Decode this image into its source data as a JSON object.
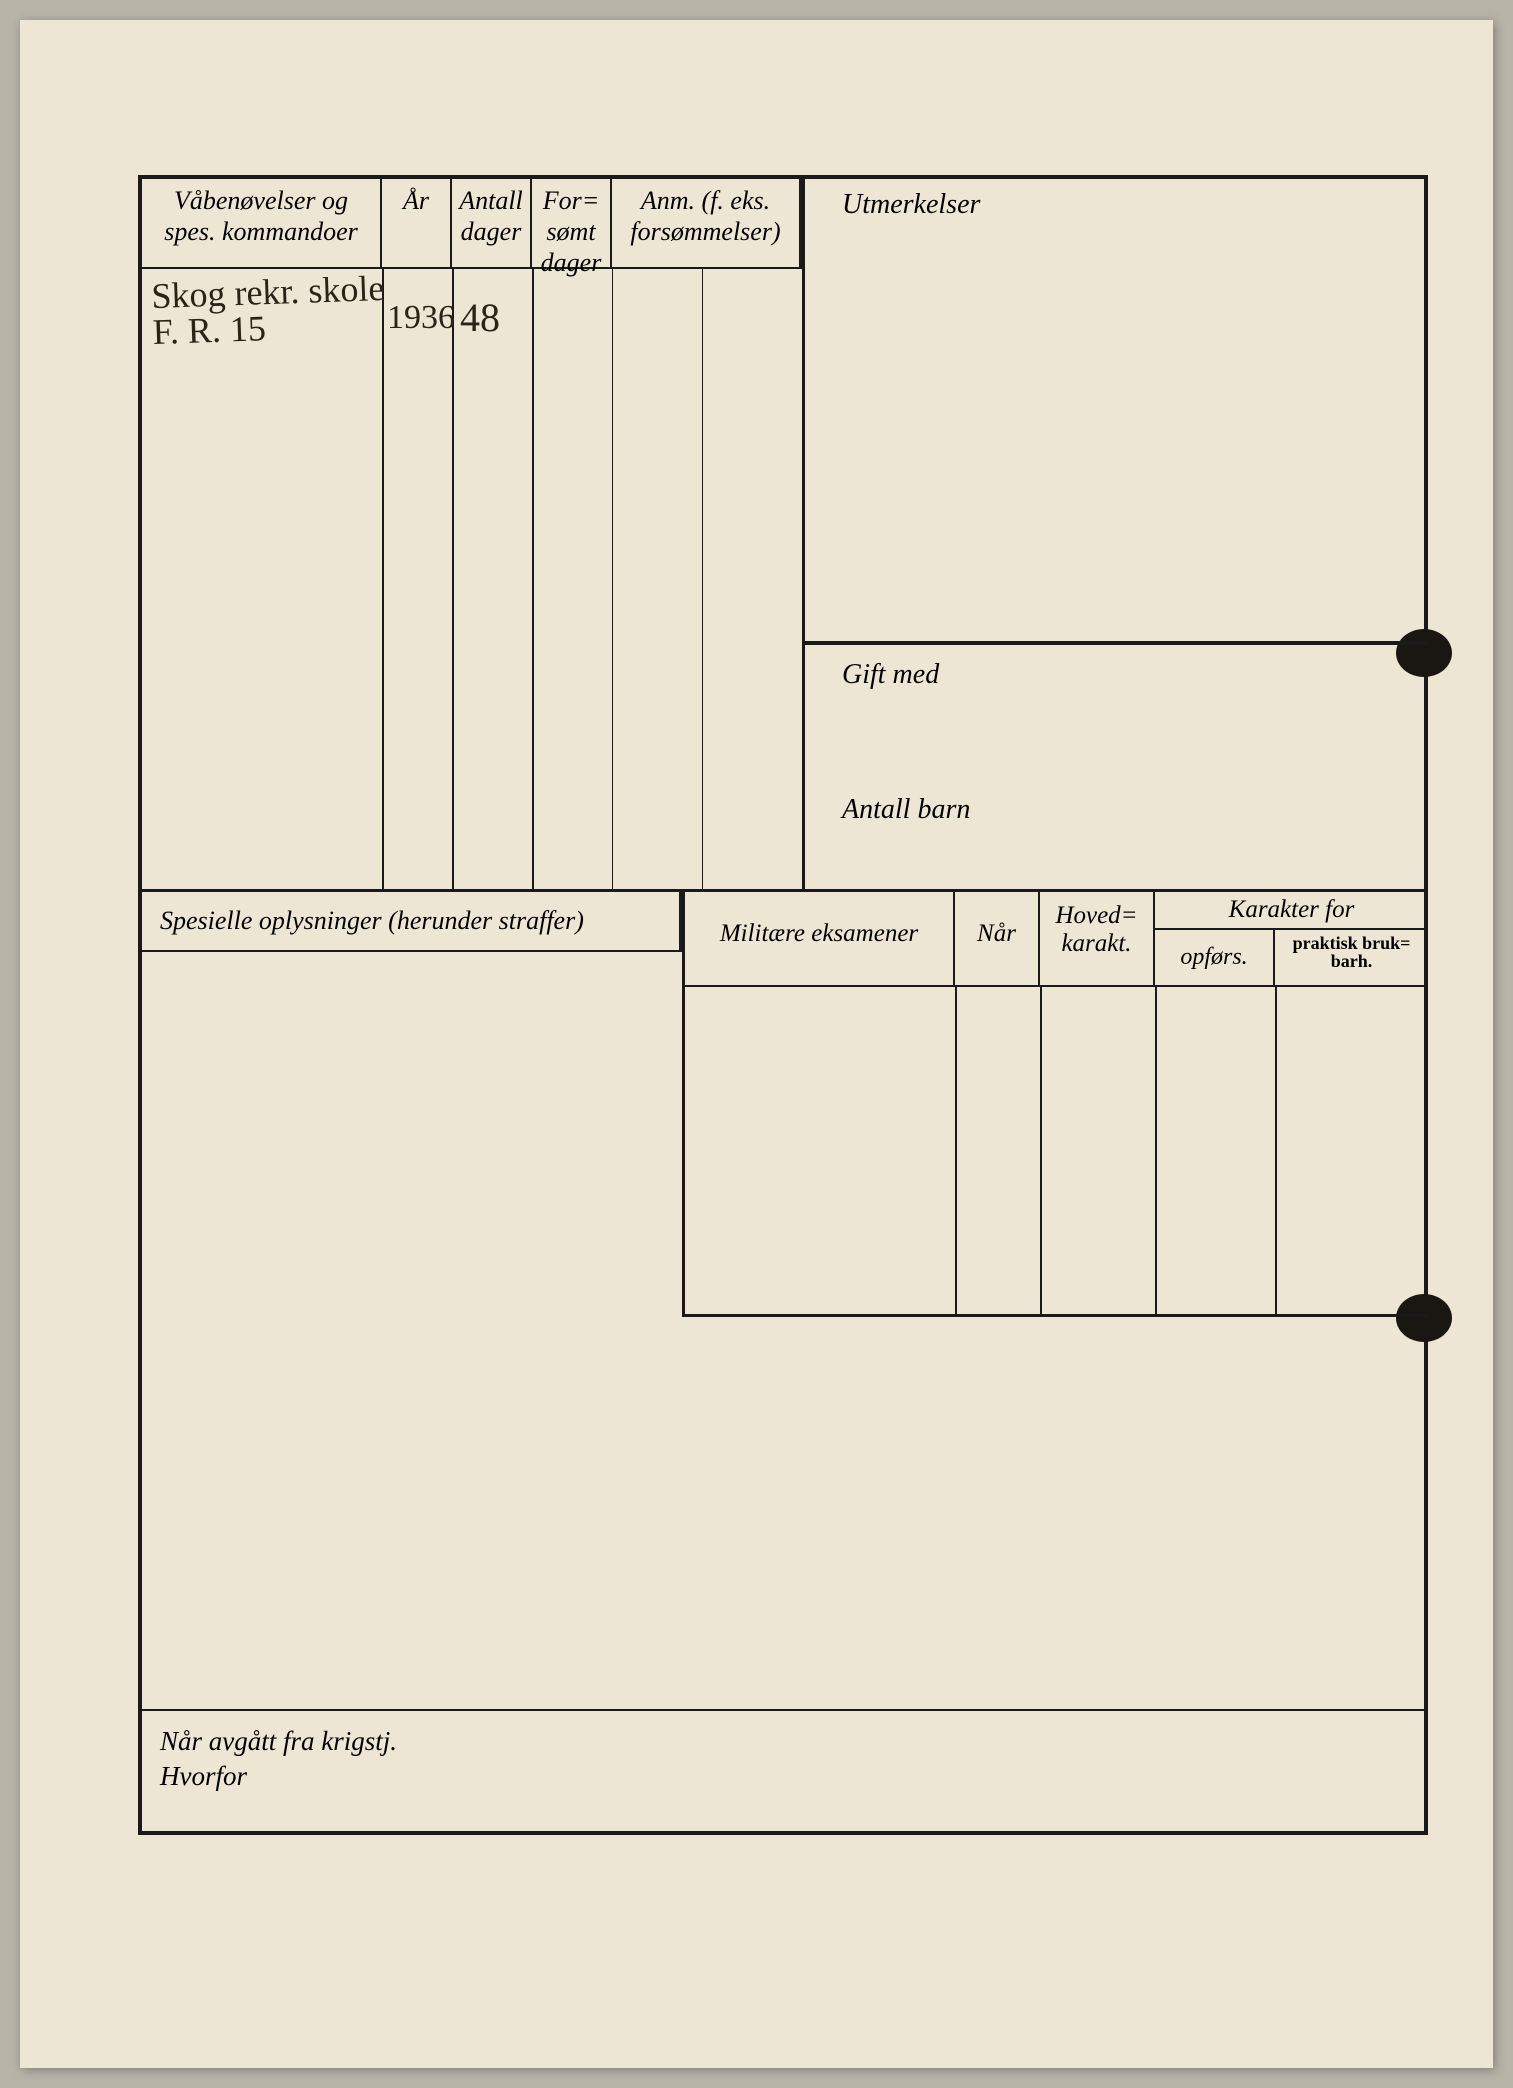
{
  "colors": {
    "paper": "#ede6d4",
    "ink": "#1a1a1a",
    "background": "#b8b4a8",
    "handwriting": "#2a2418"
  },
  "top_table": {
    "headers": {
      "vaben": "Våbenøvelser og spes. kommandoer",
      "ar": "År",
      "antall_dager": "Antall dager",
      "forsomt_dager": "For= sømt dager",
      "anm": "Anm. (f. eks. forsømmelser)"
    },
    "rows": [
      {
        "vaben": "Skog rekr. skole\nF. R. 15",
        "ar": "1936",
        "antall_dager": "48",
        "forsomt": "",
        "anm": ""
      }
    ]
  },
  "right_col": {
    "utmerkelser_label": "Utmerkelser",
    "gift_med_label": "Gift med",
    "antall_barn_label": "Antall barn"
  },
  "spesielle": {
    "header": "Spesielle oplysninger (herunder straffer)"
  },
  "militare": {
    "col1": "Militære eksamener",
    "col2": "Når",
    "col3": "Hoved= karakt.",
    "karakter_for": "Karakter for",
    "opfors": "opførs.",
    "praktisk": "praktisk bruk= barh."
  },
  "bottom": {
    "naar": "Når avgått fra krigstj.",
    "hvorfor": "Hvorfor"
  }
}
